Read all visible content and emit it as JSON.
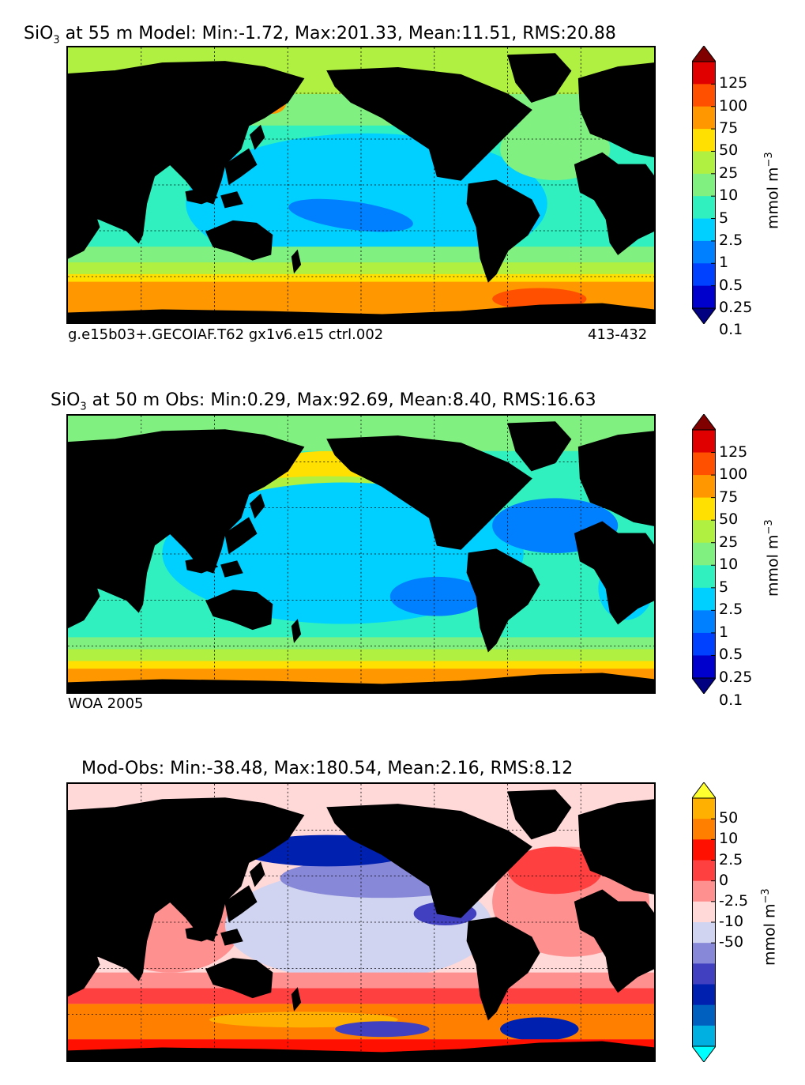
{
  "panels": [
    {
      "title_prefix": "SiO",
      "title_sub": "3",
      "title_rest": " at 55 m Model: Min:-1.72, Max:201.33, Mean:11.51, RMS:20.88",
      "footer_left": "g.e15b03+.GECOIAF.T62 gx1v6.e15 ctrl.002",
      "footer_right": "413-432",
      "colorbar": {
        "ticks": [
          "125",
          "100",
          "75",
          "50",
          "25",
          "10",
          "5",
          "2.5",
          "1",
          "0.5",
          "0.25",
          "0.1"
        ],
        "colors": [
          "#000080",
          "#0000cd",
          "#0040ff",
          "#0080ff",
          "#00d0ff",
          "#30f0c0",
          "#80f080",
          "#b0f040",
          "#ffe000",
          "#ff9800",
          "#ff5000",
          "#e00000",
          "#800000"
        ],
        "unit": "mmol m",
        "unit_sup": "−3"
      }
    },
    {
      "title_prefix": "SiO",
      "title_sub": "3",
      "title_rest": " at 50 m Obs: Min:0.29, Max:92.69, Mean:8.40, RMS:16.63",
      "footer_left": "WOA 2005",
      "footer_right": "",
      "colorbar": {
        "ticks": [
          "125",
          "100",
          "75",
          "50",
          "25",
          "10",
          "5",
          "2.5",
          "1",
          "0.5",
          "0.25",
          "0.1"
        ],
        "colors": [
          "#000080",
          "#0000cd",
          "#0040ff",
          "#0080ff",
          "#00d0ff",
          "#30f0c0",
          "#80f080",
          "#b0f040",
          "#ffe000",
          "#ff9800",
          "#ff5000",
          "#e00000",
          "#800000"
        ],
        "unit": "mmol m",
        "unit_sup": "−3"
      }
    },
    {
      "title_prefix": "",
      "title_sub": "",
      "title_rest": "Mod-Obs: Min:-38.48, Max:180.54, Mean:2.16, RMS:8.12",
      "footer_left": "",
      "footer_right": "",
      "colorbar": {
        "ticks": [
          "50",
          "10",
          "2.5",
          "0",
          "-2.5",
          "-10",
          "-50"
        ],
        "colors": [
          "#00ffff",
          "#00b0e0",
          "#0060c0",
          "#0020b0",
          "#4040c0",
          "#8888d8",
          "#d0d4f0",
          "#ffd8d8",
          "#ff9090",
          "#ff4040",
          "#ff1000",
          "#ff8000",
          "#ffb000",
          "#ffff30"
        ],
        "unit": "mmol m",
        "unit_sup": "−3"
      }
    }
  ],
  "chart_data": [
    {
      "type": "heatmap",
      "title": "SiO3 at 55 m Model: Min:-1.72, Max:201.33, Mean:11.51, RMS:20.88",
      "stats": {
        "min": -1.72,
        "max": 201.33,
        "mean": 11.51,
        "rms": 20.88
      },
      "colorbar_levels": [
        0.1,
        0.25,
        0.5,
        1,
        2.5,
        5,
        10,
        25,
        50,
        75,
        100,
        125
      ],
      "colorbar_label": "mmol m^-3"
    },
    {
      "type": "heatmap",
      "title": "SiO3 at 50 m Obs: Min:0.29, Max:92.69, Mean:8.40, RMS:16.63",
      "stats": {
        "min": 0.29,
        "max": 92.69,
        "mean": 8.4,
        "rms": 16.63
      },
      "colorbar_levels": [
        0.1,
        0.25,
        0.5,
        1,
        2.5,
        5,
        10,
        25,
        50,
        75,
        100,
        125
      ],
      "colorbar_label": "mmol m^-3"
    },
    {
      "type": "heatmap",
      "title": "Mod-Obs: Min:-38.48, Max:180.54, Mean:2.16, RMS:8.12",
      "stats": {
        "min": -38.48,
        "max": 180.54,
        "mean": 2.16,
        "rms": 8.12
      },
      "colorbar_levels": [
        -50,
        -10,
        -2.5,
        0,
        2.5,
        10,
        50
      ],
      "colorbar_label": "mmol m^-3"
    }
  ]
}
